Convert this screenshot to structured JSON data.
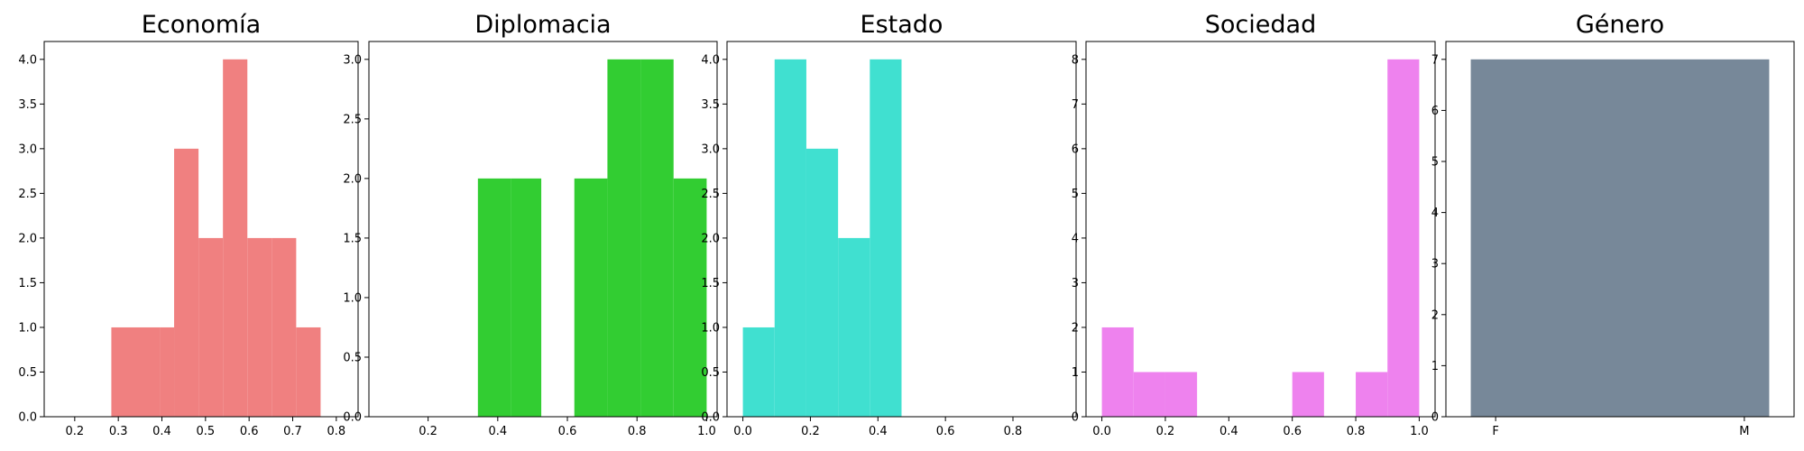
{
  "chart_data": [
    {
      "type": "bar",
      "title": "Economía",
      "color": "#F08080",
      "xlim": [
        0.13,
        0.85
      ],
      "ylim": [
        0,
        4.2
      ],
      "xticks": [
        "0.2",
        "0.3",
        "0.4",
        "0.5",
        "0.6",
        "0.7",
        "0.8"
      ],
      "yticks": [
        "0.0",
        "0.5",
        "1.0",
        "1.5",
        "2.0",
        "2.5",
        "3.0",
        "3.5",
        "4.0"
      ],
      "bins": [
        {
          "x0": 0.284,
          "x1": 0.396,
          "count": 1
        },
        {
          "x0": 0.396,
          "x1": 0.428,
          "count": 1
        },
        {
          "x0": 0.428,
          "x1": 0.484,
          "count": 3
        },
        {
          "x0": 0.484,
          "x1": 0.54,
          "count": 2
        },
        {
          "x0": 0.54,
          "x1": 0.596,
          "count": 4
        },
        {
          "x0": 0.596,
          "x1": 0.652,
          "count": 2
        },
        {
          "x0": 0.652,
          "x1": 0.708,
          "count": 2
        },
        {
          "x0": 0.708,
          "x1": 0.764,
          "count": 1
        }
      ]
    },
    {
      "type": "bar",
      "title": "Diplomacia",
      "color": "#32CD32",
      "xlim": [
        0.03,
        1.03
      ],
      "ylim": [
        0,
        3.15
      ],
      "xticks": [
        "0.2",
        "0.4",
        "0.6",
        "0.8",
        "1.0"
      ],
      "yticks": [
        "0.0",
        "0.5",
        "1.0",
        "1.5",
        "2.0",
        "2.5",
        "3.0"
      ],
      "bins": [
        {
          "x0": 0.343,
          "x1": 0.439,
          "count": 2
        },
        {
          "x0": 0.439,
          "x1": 0.525,
          "count": 2
        },
        {
          "x0": 0.62,
          "x1": 0.715,
          "count": 2
        },
        {
          "x0": 0.715,
          "x1": 0.81,
          "count": 3
        },
        {
          "x0": 0.81,
          "x1": 0.905,
          "count": 3
        },
        {
          "x0": 0.905,
          "x1": 1.0,
          "count": 2
        }
      ]
    },
    {
      "type": "bar",
      "title": "Estado",
      "color": "#40E0D0",
      "xlim": [
        -0.047,
        0.987
      ],
      "ylim": [
        0,
        4.2
      ],
      "xticks": [
        "0.0",
        "0.2",
        "0.4",
        "0.6",
        "0.8"
      ],
      "yticks": [
        "0.0",
        "0.5",
        "1.0",
        "1.5",
        "2.0",
        "2.5",
        "3.0",
        "3.5",
        "4.0"
      ],
      "bins": [
        {
          "x0": 0.0,
          "x1": 0.094,
          "count": 1
        },
        {
          "x0": 0.094,
          "x1": 0.188,
          "count": 4
        },
        {
          "x0": 0.188,
          "x1": 0.282,
          "count": 3
        },
        {
          "x0": 0.282,
          "x1": 0.376,
          "count": 2
        },
        {
          "x0": 0.376,
          "x1": 0.47,
          "count": 4
        }
      ]
    },
    {
      "type": "bar",
      "title": "Sociedad",
      "color": "#EE82EE",
      "xlim": [
        -0.05,
        1.05
      ],
      "ylim": [
        0,
        8.4
      ],
      "xticks": [
        "0.0",
        "0.2",
        "0.4",
        "0.6",
        "0.8",
        "1.0"
      ],
      "yticks": [
        "0",
        "1",
        "2",
        "3",
        "4",
        "5",
        "6",
        "7",
        "8"
      ],
      "bins": [
        {
          "x0": 0.0,
          "x1": 0.1,
          "count": 2
        },
        {
          "x0": 0.1,
          "x1": 0.2,
          "count": 1
        },
        {
          "x0": 0.2,
          "x1": 0.3,
          "count": 1
        },
        {
          "x0": 0.6,
          "x1": 0.7,
          "count": 1
        },
        {
          "x0": 0.8,
          "x1": 0.9,
          "count": 1
        },
        {
          "x0": 0.9,
          "x1": 1.0,
          "count": 8
        }
      ]
    },
    {
      "type": "bar",
      "title": "Género",
      "color": "#778899",
      "xlim": [
        -0.2,
        1.2
      ],
      "ylim": [
        0,
        7.35
      ],
      "xticks": [
        "F",
        "M"
      ],
      "xtick_positions": [
        0,
        1
      ],
      "yticks": [
        "0",
        "1",
        "2",
        "3",
        "4",
        "5",
        "6",
        "7"
      ],
      "bins": [
        {
          "x0": -0.1,
          "x1": 1.1,
          "count": 7
        }
      ]
    }
  ]
}
